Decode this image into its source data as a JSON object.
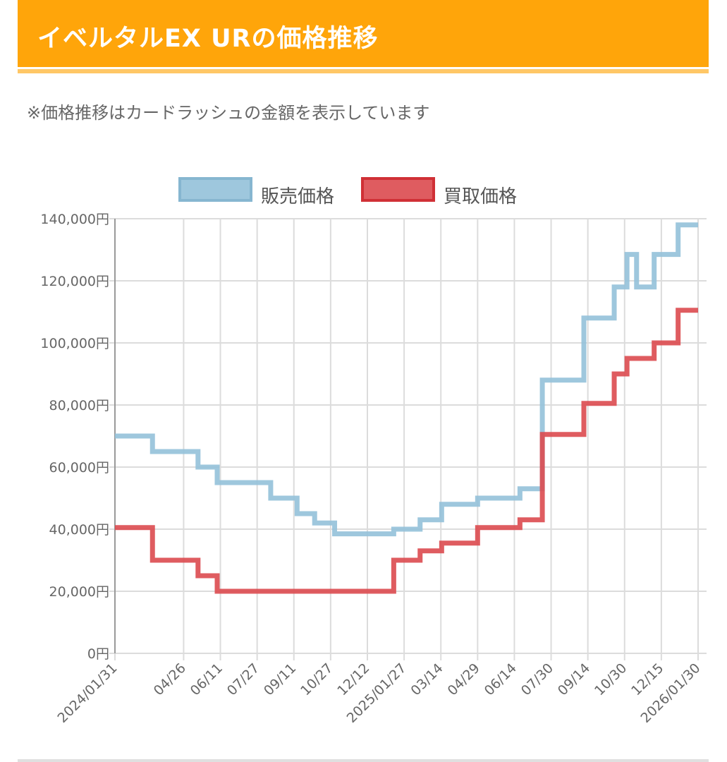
{
  "header": {
    "title": "イベルタルEX URの価格推移"
  },
  "note": "※価格推移はカードラッシュの金額を表示しています",
  "colors": {
    "header": "#ffa50a",
    "sell": "#93c1d9",
    "buy": "#dc4a4f"
  },
  "chart_data": {
    "type": "line",
    "step": true,
    "title": "",
    "xlabel": "",
    "ylabel": "",
    "grid": true,
    "legend_position": "top",
    "xlim": [
      "2024-01-31",
      "2026-01-30"
    ],
    "ylim": [
      0,
      140000
    ],
    "y_ticks": [
      0,
      20000,
      40000,
      60000,
      80000,
      100000,
      120000,
      140000
    ],
    "y_tick_labels": [
      "0円",
      "20,000円",
      "40,000円",
      "60,000円",
      "80,000円",
      "100,000円",
      "120,000円",
      "140,000円"
    ],
    "x_ticks": [
      "2024-01-31",
      "2024-04-26",
      "2024-06-11",
      "2024-07-27",
      "2024-09-11",
      "2024-10-27",
      "2024-12-12",
      "2025-01-27",
      "2025-03-14",
      "2025-04-29",
      "2025-06-14",
      "2025-07-30",
      "2025-09-14",
      "2025-10-30",
      "2025-12-15",
      "2026-01-30"
    ],
    "x_tick_labels": [
      "2024/01/31",
      "04/26",
      "06/11",
      "07/27",
      "09/11",
      "10/27",
      "12/12",
      "2025/01/27",
      "03/14",
      "04/29",
      "06/14",
      "07/30",
      "09/14",
      "10/30",
      "12/15",
      "2026/01/30"
    ],
    "series": [
      {
        "name": "販売価格",
        "color": "#93c1d9",
        "points": [
          [
            "2024-01-31",
            70000
          ],
          [
            "2024-03-18",
            65000
          ],
          [
            "2024-05-14",
            60000
          ],
          [
            "2024-06-07",
            55000
          ],
          [
            "2024-08-13",
            50000
          ],
          [
            "2024-09-15",
            45000
          ],
          [
            "2024-10-07",
            42000
          ],
          [
            "2024-11-01",
            38500
          ],
          [
            "2025-01-14",
            40000
          ],
          [
            "2025-02-16",
            43000
          ],
          [
            "2025-03-15",
            48000
          ],
          [
            "2025-04-29",
            50000
          ],
          [
            "2025-06-21",
            53000
          ],
          [
            "2025-07-19",
            88000
          ],
          [
            "2025-09-09",
            108000
          ],
          [
            "2025-10-17",
            118000
          ],
          [
            "2025-11-02",
            128500
          ],
          [
            "2025-11-14",
            118000
          ],
          [
            "2025-12-06",
            128500
          ],
          [
            "2026-01-05",
            138000
          ],
          [
            "2026-01-30",
            138000
          ]
        ]
      },
      {
        "name": "買取価格",
        "color": "#dc4a4f",
        "points": [
          [
            "2024-01-31",
            40500
          ],
          [
            "2024-03-18",
            30000
          ],
          [
            "2024-05-14",
            25000
          ],
          [
            "2024-06-07",
            20000
          ],
          [
            "2025-01-14",
            30000
          ],
          [
            "2025-02-16",
            33000
          ],
          [
            "2025-03-15",
            35500
          ],
          [
            "2025-04-29",
            40500
          ],
          [
            "2025-06-21",
            43000
          ],
          [
            "2025-07-19",
            70500
          ],
          [
            "2025-09-09",
            80500
          ],
          [
            "2025-10-17",
            90000
          ],
          [
            "2025-11-02",
            95000
          ],
          [
            "2025-12-06",
            100000
          ],
          [
            "2026-01-05",
            110500
          ],
          [
            "2026-01-30",
            110500
          ]
        ]
      }
    ]
  }
}
